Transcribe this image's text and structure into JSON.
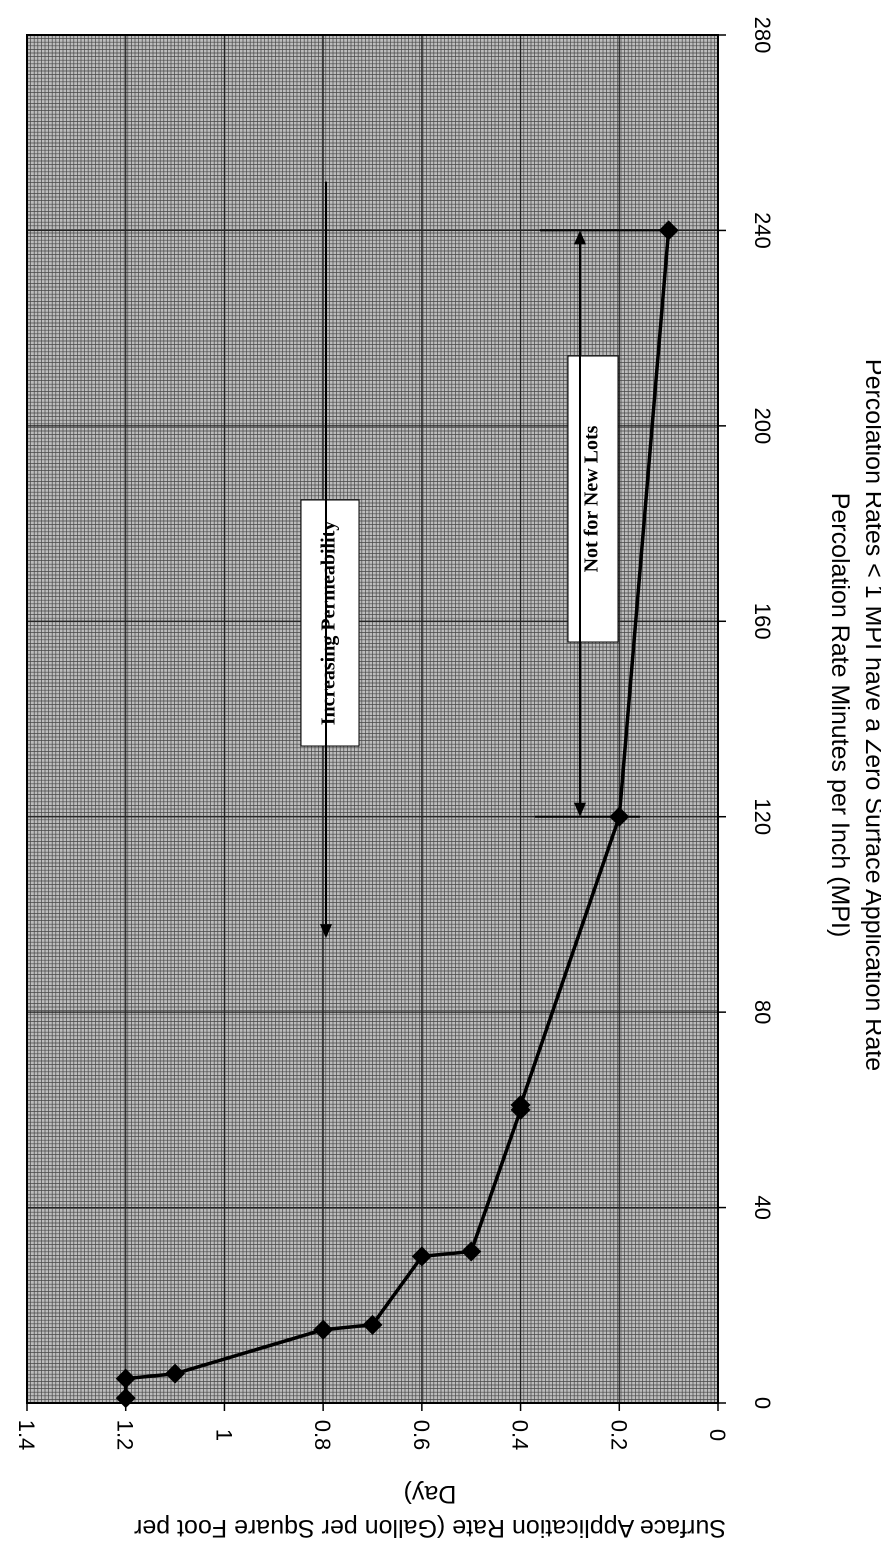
{
  "chart_data": {
    "type": "line",
    "orientation": "rotated 90 degrees clockwise",
    "x_ticks": [
      "0",
      "40",
      "80",
      "120",
      "160",
      "200",
      "240",
      "280"
    ],
    "y_ticks": [
      "0",
      "0.2",
      "0.4",
      "0.6",
      "0.8",
      "1",
      "1.2",
      "1.4"
    ],
    "xlim": [
      0,
      280
    ],
    "ylim": [
      0,
      1.4
    ],
    "grid": true,
    "xlabel": "Percolation Rate Minutes per Inch (MPI)",
    "xlabel_note": "Percolation Rates < 1 MPI have a Zero Surface Application Rate",
    "ylabel_line1": "Surface Application Rate (Gallon per Square Foot per",
    "ylabel_line2": "Day)",
    "series": [
      {
        "x": [
          1,
          5,
          6,
          15,
          16,
          30,
          31,
          60,
          61,
          120,
          240
        ],
        "y": [
          1.2,
          1.2,
          1.1,
          0.8,
          0.7,
          0.6,
          0.5,
          0.4,
          0.4,
          0.2,
          0.1
        ]
      }
    ],
    "annotations": [
      {
        "text": "Increasing Permeability",
        "arrow_from": 98,
        "arrow_to": 250
      },
      {
        "text": "Not for New Lots",
        "arrow_from": 120,
        "arrow_to": 240
      }
    ],
    "colors": {
      "plot_background": "#bdbdbd",
      "grid": "#3a3a3a",
      "line": "#000000"
    }
  }
}
